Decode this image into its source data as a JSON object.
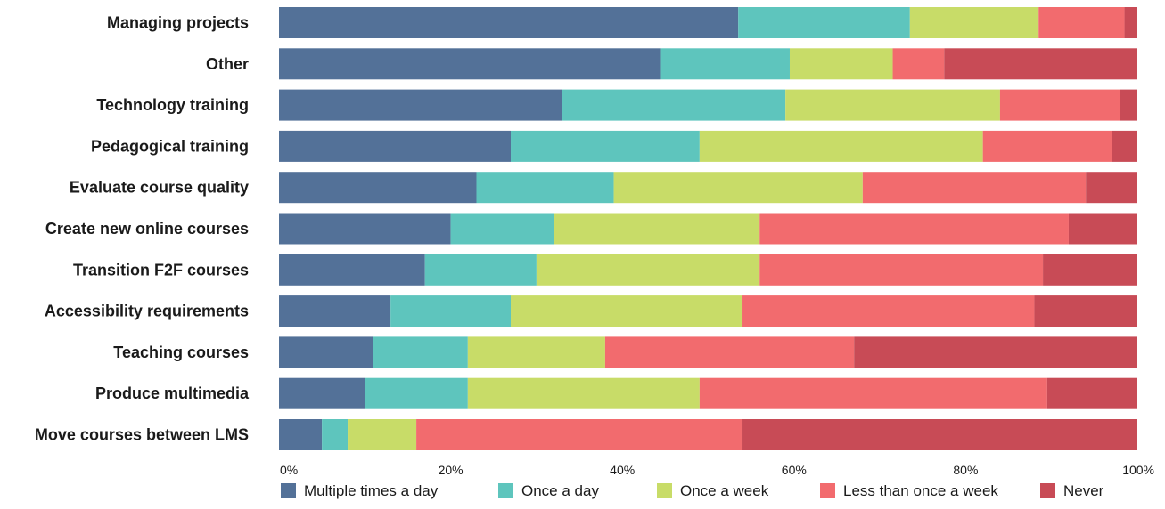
{
  "chart_data": {
    "type": "bar",
    "orientation": "horizontal",
    "stacked": true,
    "normalized_percent": true,
    "title": "",
    "xlabel": "",
    "ylabel": "",
    "xlim": [
      0,
      100
    ],
    "x_ticks": [
      "0%",
      "20%",
      "40%",
      "60%",
      "80%",
      "100%"
    ],
    "grid": false,
    "legend_position": "bottom",
    "categories": [
      "Managing projects",
      "Other",
      "Technology training",
      "Pedagogical training",
      "Evaluate course quality",
      "Create new online courses",
      "Transition F2F courses",
      "Accessibility requirements",
      "Teaching courses",
      "Produce multimedia",
      "Move courses between LMS"
    ],
    "series": [
      {
        "name": "Multiple times a day",
        "color": "#537198",
        "values": [
          53.5,
          44.5,
          33,
          27,
          23,
          20,
          17,
          13,
          11,
          10,
          5
        ]
      },
      {
        "name": "Once a day",
        "color": "#5ec5bd",
        "values": [
          20,
          15,
          26,
          22,
          16,
          12,
          13,
          14,
          11,
          12,
          3
        ]
      },
      {
        "name": "Once a week",
        "color": "#c8dc68",
        "values": [
          15,
          12,
          25,
          33,
          29,
          24,
          26,
          27,
          16,
          27,
          8
        ]
      },
      {
        "name": "Less than once a week",
        "color": "#f26b6e",
        "values": [
          10,
          6,
          14,
          15,
          26,
          36,
          33,
          34,
          29,
          40.5,
          38
        ]
      },
      {
        "name": "Never",
        "color": "#c84b56",
        "values": [
          1.5,
          22.5,
          2,
          3,
          6,
          8,
          11,
          12,
          33,
          10.5,
          46
        ]
      }
    ]
  }
}
